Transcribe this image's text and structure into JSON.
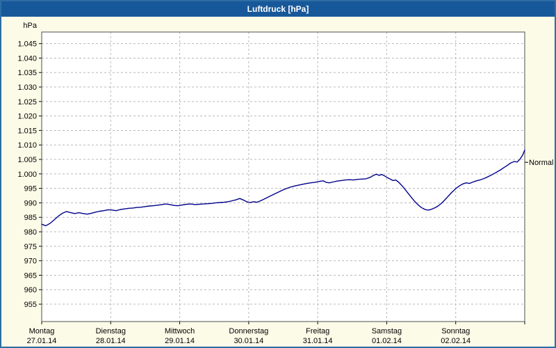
{
  "window": {
    "title": "Luftdruck [hPa]"
  },
  "colors": {
    "titlebar_bg": "#17589a",
    "titlebar_text": "#ffffff",
    "window_border": "#2e6da4",
    "window_bg": "#fcfbe8",
    "plot_bg": "#ffffff",
    "plot_border": "#4d4d4d",
    "grid": "#b8b8b8",
    "axis": "#000000",
    "line": "#00008b"
  },
  "chart_data": {
    "type": "line",
    "title": "Luftdruck [hPa]",
    "xlabel": "",
    "ylabel": "hPa",
    "ylim": [
      949,
      1049
    ],
    "x_range_days": [
      0,
      7
    ],
    "grid": "dashed",
    "legend": "none",
    "y_ticks": [
      {
        "value": 955,
        "label": "955"
      },
      {
        "value": 960,
        "label": "960"
      },
      {
        "value": 965,
        "label": "965"
      },
      {
        "value": 970,
        "label": "970"
      },
      {
        "value": 975,
        "label": "975"
      },
      {
        "value": 980,
        "label": "980"
      },
      {
        "value": 985,
        "label": "985"
      },
      {
        "value": 990,
        "label": "990"
      },
      {
        "value": 995,
        "label": "995"
      },
      {
        "value": 1000,
        "label": "1.000"
      },
      {
        "value": 1005,
        "label": "1.005"
      },
      {
        "value": 1010,
        "label": "1.010"
      },
      {
        "value": 1015,
        "label": "1.015"
      },
      {
        "value": 1020,
        "label": "1.020"
      },
      {
        "value": 1025,
        "label": "1.025"
      },
      {
        "value": 1030,
        "label": "1.030"
      },
      {
        "value": 1035,
        "label": "1.035"
      },
      {
        "value": 1040,
        "label": "1.040"
      },
      {
        "value": 1045,
        "label": "1.045"
      }
    ],
    "x_days": [
      {
        "name": "Montag",
        "date": "27.01.14"
      },
      {
        "name": "Dienstag",
        "date": "28.01.14"
      },
      {
        "name": "Mittwoch",
        "date": "29.01.14"
      },
      {
        "name": "Donnerstag",
        "date": "30.01.14"
      },
      {
        "name": "Freitag",
        "date": "31.01.14"
      },
      {
        "name": "Samstag",
        "date": "01.02.14"
      },
      {
        "name": "Sonntag",
        "date": "02.02.14"
      }
    ],
    "normal": {
      "label": "Normal",
      "value": 1004
    },
    "series": [
      {
        "name": "Luftdruck",
        "unit": "hPa",
        "color": "#00008b",
        "points": [
          [
            0.0,
            982.6
          ],
          [
            0.06,
            982.1
          ],
          [
            0.12,
            982.9
          ],
          [
            0.18,
            984.1
          ],
          [
            0.24,
            985.4
          ],
          [
            0.3,
            986.4
          ],
          [
            0.36,
            987.0
          ],
          [
            0.42,
            986.6
          ],
          [
            0.48,
            986.3
          ],
          [
            0.54,
            986.6
          ],
          [
            0.6,
            986.3
          ],
          [
            0.66,
            986.1
          ],
          [
            0.72,
            986.4
          ],
          [
            0.78,
            986.8
          ],
          [
            0.84,
            987.1
          ],
          [
            0.9,
            987.3
          ],
          [
            0.96,
            987.6
          ],
          [
            1.02,
            987.5
          ],
          [
            1.08,
            987.3
          ],
          [
            1.14,
            987.7
          ],
          [
            1.2,
            987.9
          ],
          [
            1.26,
            988.1
          ],
          [
            1.32,
            988.2
          ],
          [
            1.38,
            988.4
          ],
          [
            1.44,
            988.5
          ],
          [
            1.5,
            988.7
          ],
          [
            1.56,
            988.9
          ],
          [
            1.62,
            989.0
          ],
          [
            1.68,
            989.2
          ],
          [
            1.74,
            989.4
          ],
          [
            1.8,
            989.6
          ],
          [
            1.86,
            989.4
          ],
          [
            1.92,
            989.1
          ],
          [
            1.98,
            989.0
          ],
          [
            2.04,
            989.3
          ],
          [
            2.1,
            989.5
          ],
          [
            2.16,
            989.6
          ],
          [
            2.22,
            989.4
          ],
          [
            2.28,
            989.5
          ],
          [
            2.34,
            989.6
          ],
          [
            2.4,
            989.7
          ],
          [
            2.46,
            989.8
          ],
          [
            2.52,
            990.0
          ],
          [
            2.58,
            990.1
          ],
          [
            2.64,
            990.2
          ],
          [
            2.7,
            990.4
          ],
          [
            2.76,
            990.7
          ],
          [
            2.82,
            991.1
          ],
          [
            2.87,
            991.5
          ],
          [
            2.92,
            991.0
          ],
          [
            2.97,
            990.4
          ],
          [
            3.02,
            990.1
          ],
          [
            3.07,
            990.4
          ],
          [
            3.12,
            990.2
          ],
          [
            3.18,
            990.8
          ],
          [
            3.24,
            991.5
          ],
          [
            3.3,
            992.2
          ],
          [
            3.36,
            992.9
          ],
          [
            3.42,
            993.6
          ],
          [
            3.48,
            994.3
          ],
          [
            3.54,
            994.9
          ],
          [
            3.6,
            995.4
          ],
          [
            3.66,
            995.8
          ],
          [
            3.72,
            996.1
          ],
          [
            3.78,
            996.4
          ],
          [
            3.84,
            996.7
          ],
          [
            3.9,
            996.9
          ],
          [
            3.96,
            997.1
          ],
          [
            4.02,
            997.4
          ],
          [
            4.08,
            997.6
          ],
          [
            4.12,
            997.1
          ],
          [
            4.17,
            996.9
          ],
          [
            4.22,
            997.2
          ],
          [
            4.28,
            997.5
          ],
          [
            4.34,
            997.7
          ],
          [
            4.4,
            997.9
          ],
          [
            4.46,
            998.0
          ],
          [
            4.52,
            997.9
          ],
          [
            4.58,
            998.1
          ],
          [
            4.64,
            998.2
          ],
          [
            4.7,
            998.3
          ],
          [
            4.76,
            998.8
          ],
          [
            4.81,
            999.5
          ],
          [
            4.85,
            999.9
          ],
          [
            4.89,
            999.5
          ],
          [
            4.93,
            999.8
          ],
          [
            4.97,
            999.3
          ],
          [
            5.01,
            998.7
          ],
          [
            5.05,
            998.2
          ],
          [
            5.09,
            997.7
          ],
          [
            5.13,
            997.9
          ],
          [
            5.17,
            997.2
          ],
          [
            5.21,
            996.2
          ],
          [
            5.25,
            995.1
          ],
          [
            5.29,
            993.9
          ],
          [
            5.33,
            992.7
          ],
          [
            5.37,
            991.5
          ],
          [
            5.41,
            990.4
          ],
          [
            5.45,
            989.4
          ],
          [
            5.49,
            988.6
          ],
          [
            5.53,
            988.0
          ],
          [
            5.57,
            987.6
          ],
          [
            5.61,
            987.5
          ],
          [
            5.65,
            987.8
          ],
          [
            5.7,
            988.3
          ],
          [
            5.75,
            989.0
          ],
          [
            5.8,
            990.0
          ],
          [
            5.85,
            991.2
          ],
          [
            5.9,
            992.5
          ],
          [
            5.95,
            993.8
          ],
          [
            6.0,
            994.9
          ],
          [
            6.05,
            995.8
          ],
          [
            6.1,
            996.5
          ],
          [
            6.15,
            996.9
          ],
          [
            6.2,
            996.7
          ],
          [
            6.25,
            997.2
          ],
          [
            6.3,
            997.6
          ],
          [
            6.35,
            997.9
          ],
          [
            6.4,
            998.3
          ],
          [
            6.45,
            998.8
          ],
          [
            6.5,
            999.4
          ],
          [
            6.55,
            1000.0
          ],
          [
            6.6,
            1000.7
          ],
          [
            6.65,
            1001.4
          ],
          [
            6.7,
            1002.2
          ],
          [
            6.75,
            1003.0
          ],
          [
            6.8,
            1003.8
          ],
          [
            6.85,
            1004.3
          ],
          [
            6.89,
            1004.1
          ],
          [
            6.93,
            1005.0
          ],
          [
            6.97,
            1006.5
          ],
          [
            7.0,
            1008.2
          ]
        ]
      }
    ]
  }
}
